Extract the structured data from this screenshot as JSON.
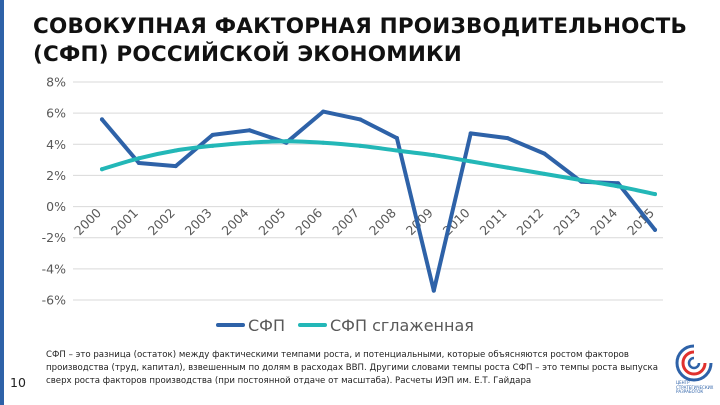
{
  "page": {
    "title_line1": "СОВОКУПНАЯ ФАКТОРНАЯ ПРОИЗВОДИТЕЛЬНОСТЬ",
    "title_line2": "(СФП) РОССИЙСКОЙ ЭКОНОМИКИ",
    "page_number": "10",
    "footnote": "СФП – это разница (остаток) между фактическими темпами роста, и потенциальными, которые объясняются ростом факторов производства (труд, капитал), взвешенным по долям в расходах ВВП. Другими словами темпы роста СФП – это темпы роста выпуска сверх роста факторов производства (при постоянной отдаче от масштаба). Расчеты ИЭП им. Е.Т. Гайдара",
    "logo_text": "ЦЕНТР СТРАТЕГИЧЕСКИХ РАЗРАБОТОК"
  },
  "colors": {
    "accent_bar": "#2e62a8",
    "series_sfp": "#2e62a8",
    "series_smoothed": "#23b7b7",
    "logo_red": "#e0312d"
  },
  "chart_data": {
    "type": "line",
    "title": "",
    "xlabel": "",
    "ylabel": "",
    "categories": [
      "2000",
      "2001",
      "2002",
      "2003",
      "2004",
      "2005",
      "2006",
      "2007",
      "2008",
      "2009",
      "2010",
      "2011",
      "2012",
      "2013",
      "2014",
      "2015"
    ],
    "ylim": [
      -6,
      8
    ],
    "yticks": [
      8,
      6,
      4,
      2,
      0,
      -2,
      -4,
      -6
    ],
    "ytick_labels": [
      "8%",
      "6%",
      "4%",
      "2%",
      "0%",
      "-2%",
      "-4%",
      "-6%"
    ],
    "grid": true,
    "legend_position": "bottom",
    "series": [
      {
        "name": "СФП",
        "values": [
          5.6,
          2.8,
          2.6,
          4.6,
          4.9,
          4.1,
          6.1,
          5.6,
          4.4,
          -5.4,
          4.7,
          4.4,
          3.4,
          1.6,
          1.5,
          -1.5
        ]
      },
      {
        "name": "СФП сглаженная",
        "values": [
          2.4,
          3.1,
          3.6,
          3.9,
          4.1,
          4.2,
          4.1,
          3.9,
          3.6,
          3.3,
          2.9,
          2.5,
          2.1,
          1.7,
          1.3,
          0.8
        ]
      }
    ]
  }
}
